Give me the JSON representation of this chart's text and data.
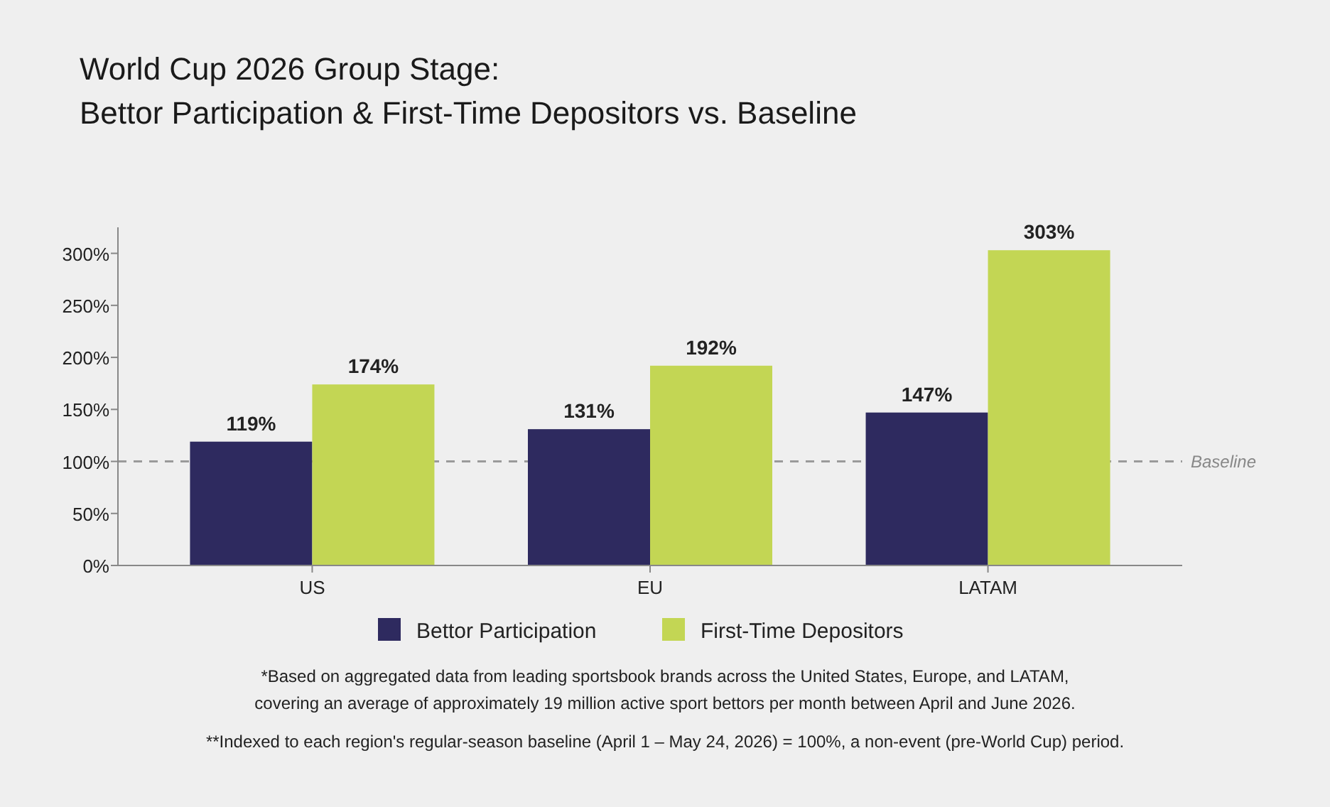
{
  "chart_data": {
    "type": "bar",
    "title": "World Cup 2026 Group Stage:\nBettor Participation & First-Time Depositors vs. Baseline",
    "categories": [
      "US",
      "EU",
      "LATAM"
    ],
    "series": [
      {
        "name": "Bettor Participation",
        "color": "#2e2a5f",
        "values": [
          119,
          131,
          147
        ],
        "value_labels": [
          "119%",
          "131%",
          "147%"
        ]
      },
      {
        "name": "First-Time Depositors",
        "color": "#c3d654",
        "values": [
          174,
          192,
          303
        ],
        "value_labels": [
          "174%",
          "192%",
          "303%"
        ]
      }
    ],
    "ylim": [
      0,
      325
    ],
    "yticks": [
      {
        "value": 0,
        "label": "0%"
      },
      {
        "value": 50,
        "label": "50%"
      },
      {
        "value": 100,
        "label": "100%"
      },
      {
        "value": 150,
        "label": "150%"
      },
      {
        "value": 200,
        "label": "200%"
      },
      {
        "value": 250,
        "label": "250%"
      },
      {
        "value": 300,
        "label": "300%"
      }
    ],
    "ref_lines": [
      {
        "axis": "y",
        "value": 100,
        "label": "Baseline",
        "color": "#9a9a9a",
        "line_style": "dashed"
      }
    ],
    "legend": "bottom",
    "grid": false,
    "annotations": [
      "*Based on aggregated data from leading sportsbook brands across the United States, Europe, and LATAM,\ncovering an average of approximately 19 million active sport bettors per month between April and June 2026.",
      "**Indexed to each region's regular-season baseline (April 1 – May 24, 2026) = 100%, a non-event (pre-World Cup) period."
    ]
  }
}
